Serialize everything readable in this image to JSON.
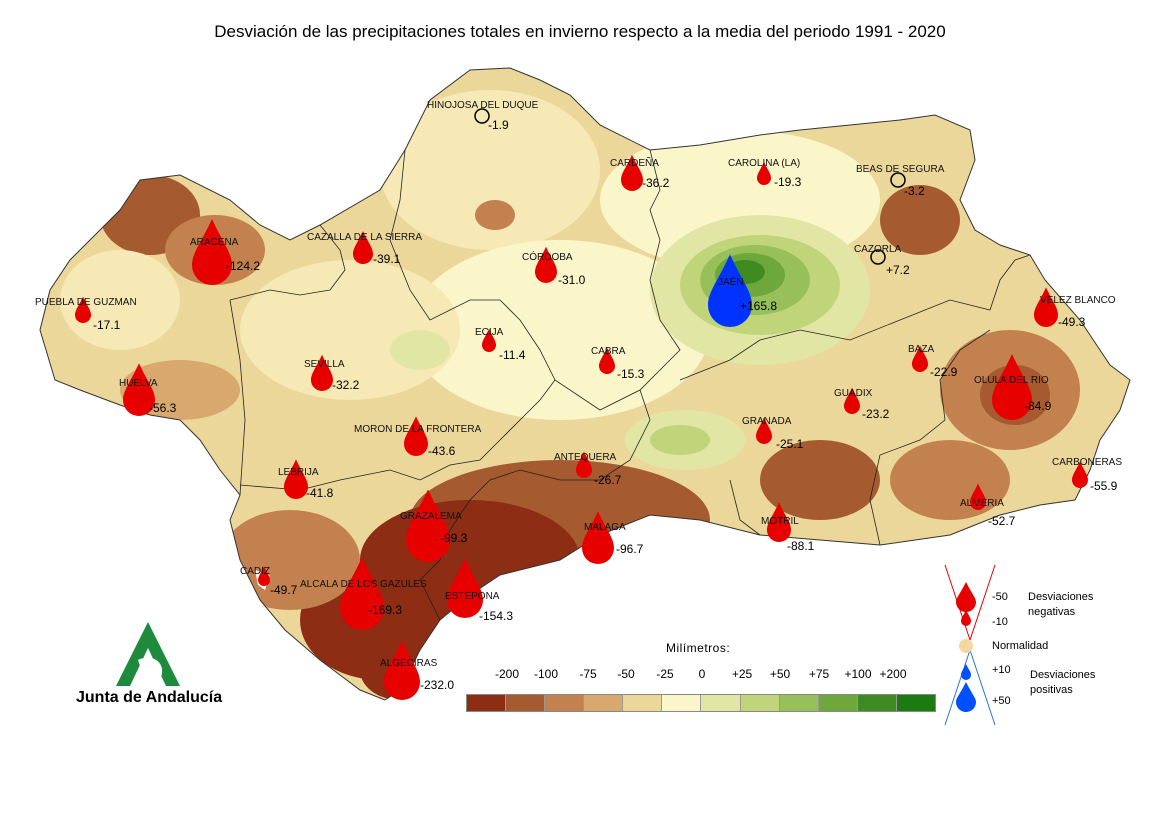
{
  "title": "Desviación de las precipitaciones totales en invierno respecto a la media del periodo 1991 - 2020",
  "stations": [
    {
      "name": "HINOJOSA DEL DUQUE",
      "value": "-1.9",
      "kind": "normal"
    },
    {
      "name": "CARDEÑA",
      "value": "-36.2",
      "kind": "neg"
    },
    {
      "name": "CAROLINA (LA)",
      "value": "-19.3",
      "kind": "neg"
    },
    {
      "name": "BEAS DE SEGURA",
      "value": "-3.2",
      "kind": "normal"
    },
    {
      "name": "ARACENA",
      "value": "-124.2",
      "kind": "neg"
    },
    {
      "name": "CAZALLA DE LA SIERRA",
      "value": "-39.1",
      "kind": "neg"
    },
    {
      "name": "CÓRDOBA",
      "value": "-31.0",
      "kind": "neg"
    },
    {
      "name": "CAZORLA",
      "value": "+7.2",
      "kind": "normal"
    },
    {
      "name": "JAÉN",
      "value": "+165.8",
      "kind": "pos"
    },
    {
      "name": "PUEBLA DE GUZMAN",
      "value": "-17.1",
      "kind": "neg"
    },
    {
      "name": "ECIJA",
      "value": "-11.4",
      "kind": "neg"
    },
    {
      "name": "VELEZ BLANCO",
      "value": "-49.3",
      "kind": "neg"
    },
    {
      "name": "CABRA",
      "value": "-15.3",
      "kind": "neg"
    },
    {
      "name": "BAZA",
      "value": "-22.9",
      "kind": "neg"
    },
    {
      "name": "SEVILLA",
      "value": "-32.2",
      "kind": "neg"
    },
    {
      "name": "HUELVA",
      "value": "-56.3",
      "kind": "neg"
    },
    {
      "name": "GUADIX",
      "value": "-23.2",
      "kind": "neg"
    },
    {
      "name": "OLULA DEL RIO",
      "value": "-84.9",
      "kind": "neg"
    },
    {
      "name": "MORON DE LA FRONTERA",
      "value": "-43.6",
      "kind": "neg"
    },
    {
      "name": "GRANADA",
      "value": "-25.1",
      "kind": "neg"
    },
    {
      "name": "ANTEQUERA",
      "value": "-26.7",
      "kind": "neg"
    },
    {
      "name": "CARBONERAS",
      "value": "-55.9",
      "kind": "neg"
    },
    {
      "name": "LEBRIJA",
      "value": "-41.8",
      "kind": "neg"
    },
    {
      "name": "GRAZALEMA",
      "value": "-99.3",
      "kind": "neg"
    },
    {
      "name": "MALAGA",
      "value": "-96.7",
      "kind": "neg"
    },
    {
      "name": "MOTRIL",
      "value": "-88.1",
      "kind": "neg"
    },
    {
      "name": "ALMERIA",
      "value": "-52.7",
      "kind": "neg"
    },
    {
      "name": "CADIZ",
      "value": "-49.7",
      "kind": "neg"
    },
    {
      "name": "ALCALA DE LOS GAZULES",
      "value": "-169.3",
      "kind": "neg"
    },
    {
      "name": "ESTEPONA",
      "value": "-154.3",
      "kind": "neg"
    },
    {
      "name": "ALGECIRAS",
      "value": "-232.0",
      "kind": "neg"
    }
  ],
  "scale": {
    "title": "Milímetros:",
    "ticks": [
      "-200",
      "-100",
      "-75",
      "-50",
      "-25",
      "0",
      "+25",
      "+50",
      "+75",
      "+100",
      "+200"
    ],
    "colors": [
      "#8c2d14",
      "#a55a30",
      "#c2814f",
      "#d9a86e",
      "#ecd79a",
      "#fbf6c9",
      "#e2e6a4",
      "#c0d47a",
      "#98c05a",
      "#6ea83c",
      "#3e8c21",
      "#1b7a10"
    ]
  },
  "legend": {
    "neg_50": "-50",
    "neg_10": "-10",
    "neg_label": "Desviaciones negativas",
    "normal_label": "Normalidad",
    "pos_10": "+10",
    "pos_50": "+50",
    "pos_label": "Desviaciones positivas"
  },
  "logo": {
    "text": "Junta de Andalucía"
  },
  "colors": {
    "negative_drop": "#e60000",
    "positive_drop": "#0033ff",
    "normal": "#f6d7a0"
  }
}
